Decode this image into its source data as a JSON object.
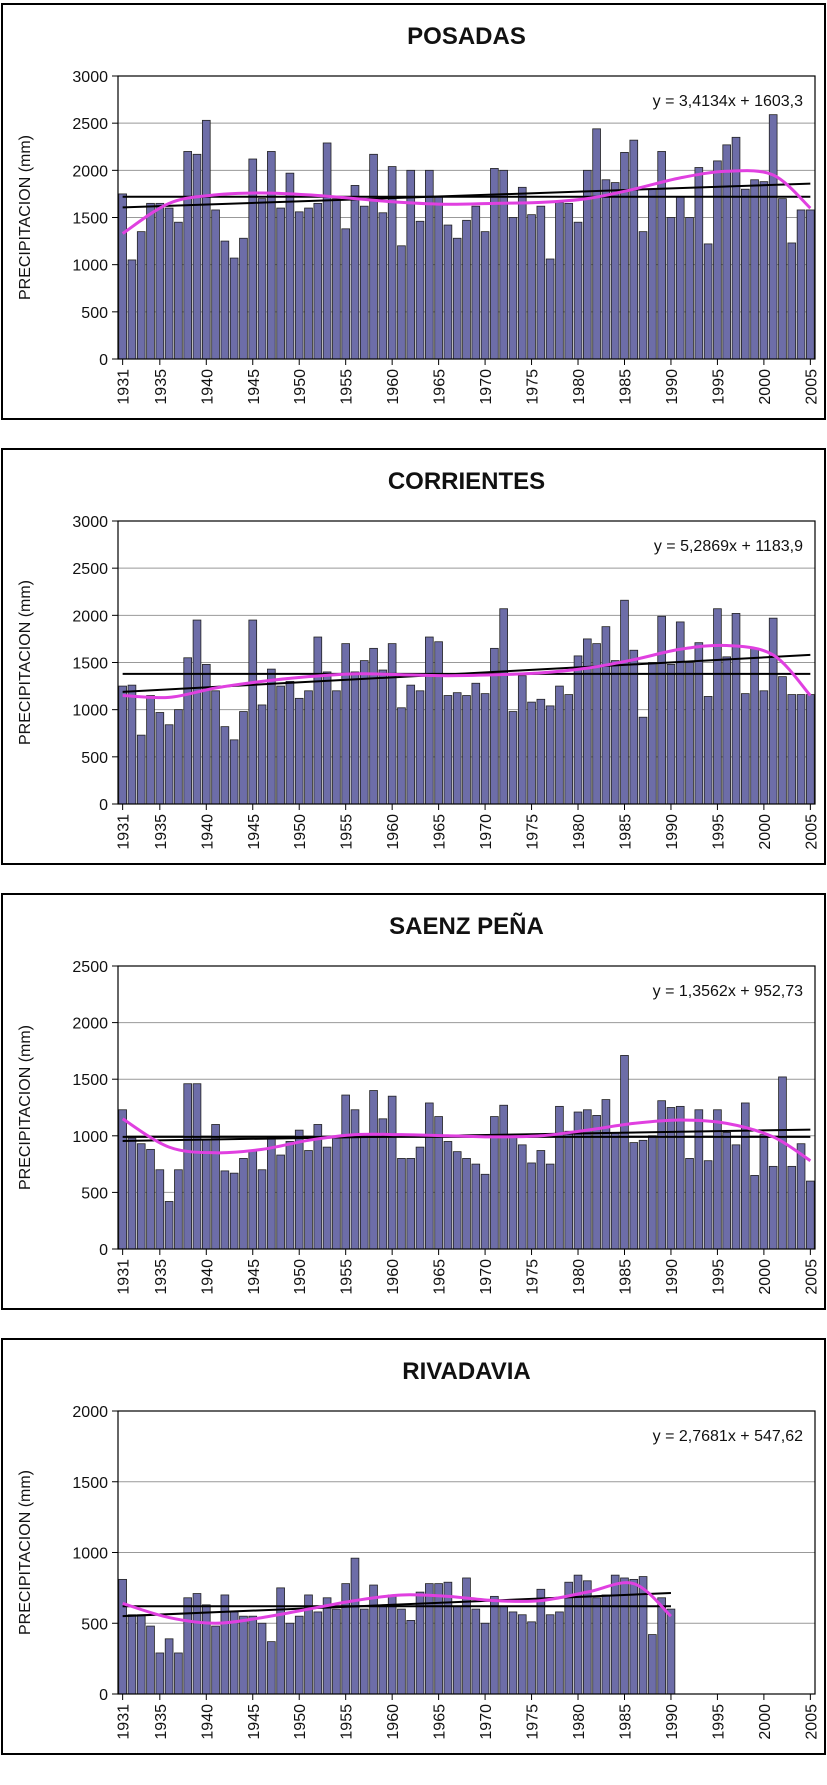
{
  "chart_data": [
    {
      "type": "bar",
      "title": "POSADAS",
      "ylabel": "PRECIPITACION (mm)",
      "x": [
        1931,
        1932,
        1933,
        1934,
        1935,
        1936,
        1937,
        1938,
        1939,
        1940,
        1941,
        1942,
        1943,
        1944,
        1945,
        1946,
        1947,
        1948,
        1949,
        1950,
        1951,
        1952,
        1953,
        1954,
        1955,
        1956,
        1957,
        1958,
        1959,
        1960,
        1961,
        1962,
        1963,
        1964,
        1965,
        1966,
        1967,
        1968,
        1969,
        1970,
        1971,
        1972,
        1973,
        1974,
        1975,
        1976,
        1977,
        1978,
        1979,
        1980,
        1981,
        1982,
        1983,
        1984,
        1985,
        1986,
        1987,
        1988,
        1989,
        1990,
        1991,
        1992,
        1993,
        1994,
        1995,
        1996,
        1997,
        1998,
        1999,
        2000,
        2001,
        2002,
        2003,
        2004,
        2005
      ],
      "values": [
        1750,
        1050,
        1350,
        1650,
        1650,
        1600,
        1450,
        2200,
        2170,
        2530,
        1580,
        1250,
        1070,
        1280,
        2120,
        1700,
        2200,
        1600,
        1970,
        1560,
        1600,
        1650,
        2290,
        1700,
        1380,
        1840,
        1620,
        2170,
        1550,
        2040,
        1200,
        2000,
        1460,
        2000,
        1720,
        1420,
        1280,
        1470,
        1620,
        1350,
        2020,
        2000,
        1500,
        1820,
        1530,
        1620,
        1060,
        1660,
        1650,
        1450,
        2000,
        2440,
        1900,
        1870,
        2190,
        2320,
        1350,
        1800,
        2200,
        1500,
        1720,
        1500,
        2030,
        1220,
        2100,
        2270,
        2350,
        1800,
        1900,
        1880,
        2590,
        1700,
        1230,
        1580,
        1580
      ],
      "color": "#6d6da8",
      "xlim": [
        1930.5,
        2005.5
      ],
      "xticks": [
        1931,
        1935,
        1940,
        1945,
        1950,
        1955,
        1960,
        1965,
        1970,
        1975,
        1980,
        1985,
        1990,
        1995,
        2000,
        2005
      ],
      "ylim": [
        0,
        3000
      ],
      "yticks": [
        0,
        500,
        1000,
        1500,
        2000,
        2500,
        3000
      ],
      "grid": true,
      "mean": 1720,
      "trend": {
        "slope": 3.4134,
        "intercept": 1603.3,
        "label": "y = 3,4134x + 1603,3"
      },
      "smooth": {
        "color": "#e040e0",
        "x": [
          1931,
          1936,
          1941,
          1946,
          1951,
          1956,
          1961,
          1966,
          1971,
          1976,
          1981,
          1986,
          1991,
          1996,
          2001,
          2005
        ],
        "values": [
          1330,
          1650,
          1740,
          1760,
          1740,
          1700,
          1660,
          1640,
          1650,
          1660,
          1700,
          1800,
          1920,
          1990,
          1950,
          1600
        ]
      }
    },
    {
      "type": "bar",
      "title": "CORRIENTES",
      "ylabel": "PRECIPITACION (mm)",
      "x": [
        1931,
        1932,
        1933,
        1934,
        1935,
        1936,
        1937,
        1938,
        1939,
        1940,
        1941,
        1942,
        1943,
        1944,
        1945,
        1946,
        1947,
        1948,
        1949,
        1950,
        1951,
        1952,
        1953,
        1954,
        1955,
        1956,
        1957,
        1958,
        1959,
        1960,
        1961,
        1962,
        1963,
        1964,
        1965,
        1966,
        1967,
        1968,
        1969,
        1970,
        1971,
        1972,
        1973,
        1974,
        1975,
        1976,
        1977,
        1978,
        1979,
        1980,
        1981,
        1982,
        1983,
        1984,
        1985,
        1986,
        1987,
        1988,
        1989,
        1990,
        1991,
        1992,
        1993,
        1994,
        1995,
        1996,
        1997,
        1998,
        1999,
        2000,
        2001,
        2002,
        2003,
        2004,
        2005
      ],
      "values": [
        1250,
        1260,
        730,
        1150,
        970,
        840,
        1000,
        1550,
        1950,
        1480,
        1200,
        820,
        680,
        980,
        1950,
        1050,
        1430,
        1250,
        1300,
        1120,
        1200,
        1770,
        1400,
        1200,
        1700,
        1400,
        1520,
        1650,
        1420,
        1700,
        1020,
        1260,
        1200,
        1770,
        1720,
        1150,
        1180,
        1150,
        1280,
        1170,
        1650,
        2070,
        980,
        1360,
        1080,
        1110,
        1040,
        1250,
        1160,
        1570,
        1750,
        1700,
        1880,
        1520,
        2160,
        1630,
        920,
        1500,
        1990,
        1480,
        1930,
        1500,
        1710,
        1140,
        2070,
        1560,
        2020,
        1170,
        1650,
        1200,
        1970,
        1350,
        1160,
        1160,
        1160
      ],
      "color": "#6d6da8",
      "xlim": [
        1930.5,
        2005.5
      ],
      "xticks": [
        1931,
        1935,
        1940,
        1945,
        1950,
        1955,
        1960,
        1965,
        1970,
        1975,
        1980,
        1985,
        1990,
        1995,
        2000,
        2005
      ],
      "ylim": [
        0,
        3000
      ],
      "yticks": [
        0,
        500,
        1000,
        1500,
        2000,
        2500,
        3000
      ],
      "grid": true,
      "mean": 1380,
      "trend": {
        "slope": 5.2869,
        "intercept": 1183.9,
        "label": "y = 5,2869x + 1183,9"
      },
      "smooth": {
        "color": "#e040e0",
        "x": [
          1931,
          1936,
          1941,
          1946,
          1951,
          1956,
          1961,
          1966,
          1971,
          1976,
          1981,
          1986,
          1991,
          1996,
          2001,
          2005
        ],
        "values": [
          1150,
          1130,
          1230,
          1300,
          1350,
          1380,
          1370,
          1360,
          1370,
          1390,
          1440,
          1530,
          1640,
          1680,
          1580,
          1150
        ]
      }
    },
    {
      "type": "bar",
      "title": "SAENZ PEÑA",
      "ylabel": "PRECIPITACION (mm)",
      "x": [
        1931,
        1932,
        1933,
        1934,
        1935,
        1936,
        1937,
        1938,
        1939,
        1940,
        1941,
        1942,
        1943,
        1944,
        1945,
        1946,
        1947,
        1948,
        1949,
        1950,
        1951,
        1952,
        1953,
        1954,
        1955,
        1956,
        1957,
        1958,
        1959,
        1960,
        1961,
        1962,
        1963,
        1964,
        1965,
        1966,
        1967,
        1968,
        1969,
        1970,
        1971,
        1972,
        1973,
        1974,
        1975,
        1976,
        1977,
        1978,
        1979,
        1980,
        1981,
        1982,
        1983,
        1984,
        1985,
        1986,
        1987,
        1988,
        1989,
        1990,
        1991,
        1992,
        1993,
        1994,
        1995,
        1996,
        1997,
        1998,
        1999,
        2000,
        2001,
        2002,
        2003,
        2004,
        2005
      ],
      "values": [
        1230,
        980,
        930,
        880,
        700,
        420,
        700,
        1460,
        1460,
        970,
        1100,
        690,
        670,
        800,
        870,
        700,
        990,
        830,
        950,
        1050,
        870,
        1100,
        900,
        980,
        1360,
        1230,
        1000,
        1400,
        1150,
        1350,
        800,
        800,
        900,
        1290,
        1170,
        950,
        860,
        800,
        750,
        660,
        1170,
        1270,
        1000,
        920,
        760,
        870,
        750,
        1260,
        1040,
        1210,
        1230,
        1180,
        1320,
        1030,
        1710,
        940,
        960,
        1000,
        1310,
        1250,
        1260,
        800,
        1230,
        780,
        1230,
        1030,
        920,
        1290,
        650,
        1010,
        730,
        1520,
        730,
        930,
        600
      ],
      "color": "#6d6da8",
      "xlim": [
        1930.5,
        2005.5
      ],
      "xticks": [
        1931,
        1935,
        1940,
        1945,
        1950,
        1955,
        1960,
        1965,
        1970,
        1975,
        1980,
        1985,
        1990,
        1995,
        2000,
        2005
      ],
      "ylim": [
        0,
        2500
      ],
      "yticks": [
        0,
        500,
        1000,
        1500,
        2000,
        2500
      ],
      "grid": true,
      "mean": 990,
      "trend": {
        "slope": 1.3562,
        "intercept": 952.73,
        "label": "y = 1,3562x + 952,73"
      },
      "smooth": {
        "color": "#e040e0",
        "x": [
          1931,
          1936,
          1941,
          1946,
          1951,
          1956,
          1961,
          1966,
          1971,
          1976,
          1981,
          1986,
          1991,
          1996,
          2001,
          2005
        ],
        "values": [
          1150,
          900,
          850,
          880,
          960,
          1010,
          1010,
          1000,
          990,
          1000,
          1050,
          1110,
          1140,
          1110,
          990,
          780
        ]
      }
    },
    {
      "type": "bar",
      "title": "RIVADAVIA",
      "ylabel": "PRECIPITACION (mm)",
      "x": [
        1931,
        1932,
        1933,
        1934,
        1935,
        1936,
        1937,
        1938,
        1939,
        1940,
        1941,
        1942,
        1943,
        1944,
        1945,
        1946,
        1947,
        1948,
        1949,
        1950,
        1951,
        1952,
        1953,
        1954,
        1955,
        1956,
        1957,
        1958,
        1959,
        1960,
        1961,
        1962,
        1963,
        1964,
        1965,
        1966,
        1967,
        1968,
        1969,
        1970,
        1971,
        1972,
        1973,
        1974,
        1975,
        1976,
        1977,
        1978,
        1979,
        1980,
        1981,
        1982,
        1983,
        1984,
        1985,
        1986,
        1987,
        1988,
        1989,
        1990,
        1991,
        1992,
        1993,
        1994,
        1995,
        1996,
        1997,
        1998,
        1999,
        2000,
        2001,
        2002,
        2003,
        2004,
        2005
      ],
      "values": [
        810,
        560,
        560,
        480,
        290,
        390,
        290,
        680,
        710,
        630,
        480,
        700,
        580,
        550,
        550,
        500,
        370,
        750,
        500,
        550,
        700,
        580,
        680,
        600,
        780,
        960,
        600,
        770,
        620,
        700,
        600,
        520,
        720,
        780,
        780,
        790,
        620,
        820,
        600,
        500,
        690,
        620,
        580,
        560,
        510,
        740,
        560,
        580,
        790,
        840,
        800,
        680,
        700,
        840,
        820,
        810,
        830,
        420,
        680,
        600,
        null,
        null,
        null,
        null,
        null,
        null,
        null,
        null,
        null,
        null,
        null,
        null,
        null,
        null,
        null
      ],
      "color": "#6d6da8",
      "xlim": [
        1930.5,
        2005.5
      ],
      "xticks": [
        1931,
        1935,
        1940,
        1945,
        1950,
        1955,
        1960,
        1965,
        1970,
        1975,
        1980,
        1985,
        1990,
        1995,
        2000,
        2005
      ],
      "ylim": [
        0,
        2000
      ],
      "yticks": [
        0,
        500,
        1000,
        1500,
        2000
      ],
      "grid": true,
      "mean": 620,
      "trend": {
        "slope": 2.7681,
        "intercept": 547.62,
        "label": "y = 2,7681x + 547,62"
      },
      "smooth": {
        "color": "#e040e0",
        "x": [
          1931,
          1936,
          1941,
          1946,
          1951,
          1956,
          1961,
          1966,
          1971,
          1976,
          1981,
          1986,
          1990
        ],
        "values": [
          640,
          540,
          500,
          540,
          600,
          660,
          700,
          690,
          660,
          660,
          720,
          780,
          550
        ]
      }
    }
  ]
}
